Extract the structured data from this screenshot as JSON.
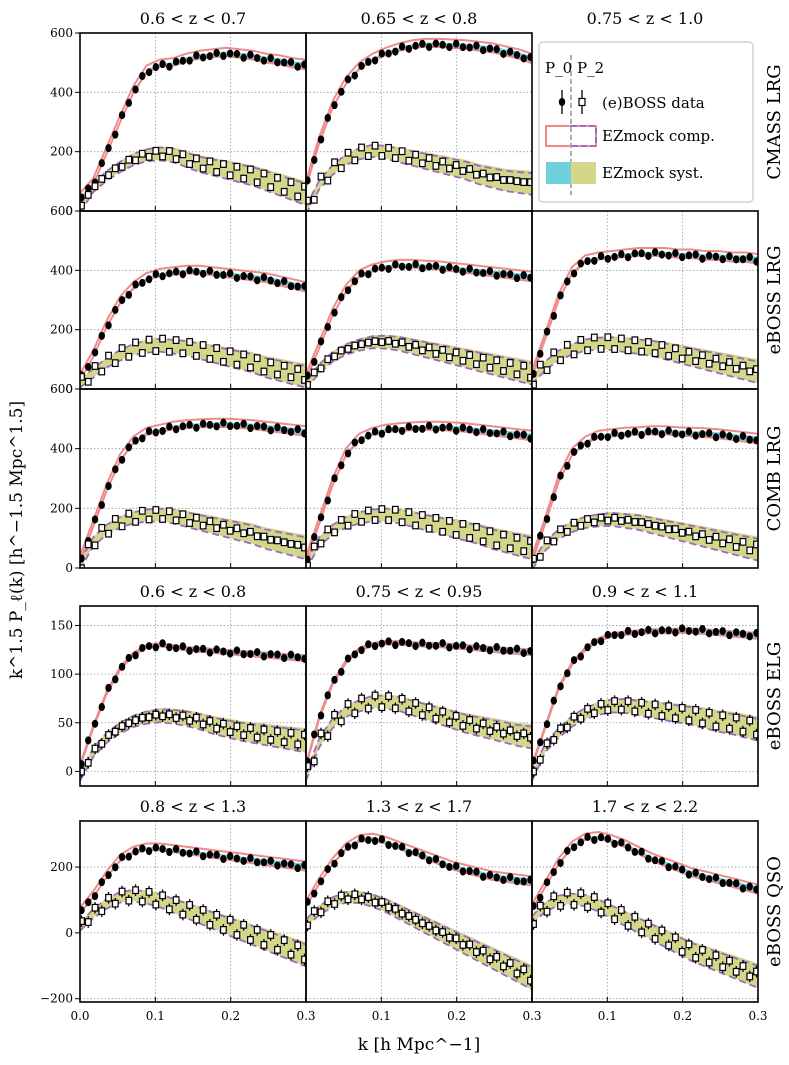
{
  "figure": {
    "y_axis_label": "k^1.5 P_ℓ(k) [h^−1.5 Mpc^1.5]",
    "x_axis_label": "k [h Mpc^−1]",
    "x_ticks": [
      "0.0",
      "0.1",
      "0.2",
      "0.3"
    ],
    "colors": {
      "mono_mock": "#f08a8a",
      "quad_mock": "#9b6bc4",
      "syst_mono": "#6fd0de",
      "syst_quad": "#d4d68a",
      "data": "#000000"
    }
  },
  "legend": {
    "p0": "P_0",
    "p2": "P_2",
    "data": "(e)BOSS data",
    "comp": "EZmock comp.",
    "syst": "EZmock syst."
  },
  "chart_data": [
    {
      "type": "line",
      "sample": "CMASS LRG",
      "row_label": "CMASS LRG",
      "ylim": [
        0,
        600
      ],
      "y_ticks": [
        0,
        200,
        400,
        600
      ],
      "panels": [
        {
          "title": "0.6 < z < 0.7",
          "P0": [
            40,
            90,
            195,
            300,
            400,
            470,
            490,
            495,
            510,
            520,
            525,
            530,
            525,
            520,
            510,
            505,
            495,
            490
          ],
          "P2": [
            10,
            80,
            120,
            150,
            175,
            190,
            195,
            190,
            175,
            160,
            150,
            140,
            130,
            120,
            105,
            90,
            75,
            60
          ]
        },
        {
          "title": "0.65 < z < 0.8",
          "P0": [
            80,
            230,
            350,
            430,
            480,
            510,
            530,
            545,
            555,
            560,
            560,
            558,
            555,
            550,
            545,
            535,
            525,
            510
          ],
          "P2": [
            5,
            90,
            140,
            175,
            195,
            205,
            200,
            190,
            180,
            170,
            160,
            150,
            140,
            125,
            115,
            105,
            100,
            95
          ]
        },
        {
          "title": "0.75 < z < 1.0",
          "legend_only": true
        }
      ]
    },
    {
      "type": "line",
      "sample": "eBOSS LRG",
      "row_label": "eBOSS LRG",
      "ylim": [
        0,
        600
      ],
      "y_ticks": [
        0,
        200,
        400,
        600
      ],
      "panels": [
        {
          "title": "",
          "P0": [
            30,
            110,
            210,
            290,
            340,
            370,
            385,
            390,
            395,
            395,
            390,
            385,
            380,
            375,
            370,
            360,
            350,
            340
          ],
          "P2": [
            20,
            55,
            90,
            115,
            135,
            145,
            150,
            145,
            140,
            130,
            120,
            110,
            100,
            90,
            75,
            65,
            55,
            45
          ]
        },
        {
          "title": "",
          "P0": [
            30,
            140,
            250,
            330,
            380,
            400,
            410,
            415,
            415,
            412,
            410,
            405,
            400,
            395,
            390,
            385,
            380,
            375
          ],
          "P2": [
            15,
            70,
            110,
            135,
            150,
            160,
            160,
            155,
            145,
            135,
            125,
            115,
            105,
            95,
            85,
            75,
            65,
            55
          ]
        },
        {
          "title": "",
          "P0": [
            40,
            170,
            300,
            390,
            430,
            440,
            445,
            450,
            455,
            455,
            455,
            450,
            450,
            445,
            445,
            440,
            440,
            435
          ],
          "P2": [
            30,
            80,
            115,
            135,
            150,
            155,
            155,
            150,
            145,
            140,
            130,
            120,
            110,
            100,
            90,
            80,
            70,
            60
          ]
        }
      ]
    },
    {
      "type": "line",
      "sample": "COMB LRG",
      "row_label": "COMB LRG",
      "ylim": [
        0,
        600
      ],
      "y_ticks": [
        0,
        200,
        400,
        600
      ],
      "panels": [
        {
          "title": "",
          "P0": [
            20,
            140,
            260,
            360,
            420,
            450,
            460,
            470,
            475,
            478,
            480,
            480,
            478,
            475,
            470,
            465,
            460,
            455
          ],
          "P2": [
            10,
            90,
            130,
            155,
            170,
            178,
            180,
            175,
            165,
            155,
            145,
            135,
            125,
            115,
            100,
            90,
            80,
            70
          ]
        },
        {
          "title": "",
          "P0": [
            20,
            150,
            280,
            380,
            430,
            450,
            460,
            465,
            468,
            470,
            470,
            468,
            465,
            460,
            455,
            450,
            445,
            440
          ],
          "P2": [
            10,
            90,
            130,
            155,
            170,
            178,
            180,
            175,
            165,
            155,
            145,
            135,
            125,
            115,
            100,
            90,
            80,
            70
          ]
        },
        {
          "title": "",
          "P0": [
            20,
            150,
            290,
            380,
            420,
            440,
            445,
            450,
            452,
            455,
            455,
            452,
            450,
            448,
            445,
            440,
            435,
            430
          ],
          "P2": [
            10,
            75,
            115,
            140,
            155,
            162,
            165,
            160,
            155,
            145,
            135,
            125,
            115,
            105,
            95,
            85,
            75,
            65
          ]
        }
      ]
    },
    {
      "type": "line",
      "sample": "eBOSS ELG",
      "row_label": "eBOSS ELG",
      "ylim": [
        -15,
        170
      ],
      "y_ticks": [
        0,
        50,
        100,
        150
      ],
      "panels": [
        {
          "title": "0.6 < z < 0.8",
          "P0": [
            5,
            45,
            80,
            105,
            120,
            128,
            130,
            128,
            126,
            125,
            124,
            123,
            122,
            121,
            120,
            119,
            118,
            117
          ],
          "P2": [
            -5,
            20,
            35,
            45,
            52,
            56,
            58,
            57,
            55,
            52,
            48,
            45,
            42,
            40,
            38,
            36,
            34,
            32
          ]
        },
        {
          "title": "0.75 < z < 0.95",
          "P0": [
            5,
            55,
            90,
            112,
            125,
            130,
            132,
            132,
            131,
            130,
            130,
            129,
            128,
            127,
            126,
            125,
            124,
            123
          ],
          "P2": [
            -5,
            30,
            50,
            62,
            68,
            72,
            72,
            70,
            66,
            62,
            58,
            54,
            50,
            47,
            44,
            41,
            38,
            36
          ]
        },
        {
          "title": "0.9 < z < 1.1",
          "P0": [
            5,
            45,
            85,
            110,
            125,
            135,
            140,
            142,
            143,
            144,
            144,
            145,
            145,
            144,
            143,
            142,
            141,
            140
          ],
          "P2": [
            -5,
            25,
            40,
            52,
            60,
            65,
            68,
            68,
            66,
            64,
            62,
            60,
            58,
            55,
            52,
            50,
            47,
            44
          ]
        }
      ]
    },
    {
      "type": "line",
      "sample": "eBOSS QSO",
      "row_label": "eBOSS QSO",
      "ylim": [
        -210,
        340
      ],
      "y_ticks": [
        -200,
        0,
        200
      ],
      "panels": [
        {
          "title": "0.8 < z < 1.3",
          "P0": [
            60,
            110,
            170,
            220,
            245,
            255,
            255,
            250,
            245,
            240,
            235,
            230,
            225,
            220,
            215,
            210,
            205,
            200
          ],
          "P2": [
            20,
            60,
            90,
            110,
            115,
            110,
            100,
            85,
            70,
            55,
            40,
            25,
            10,
            -5,
            -20,
            -35,
            -50,
            -65
          ]
        },
        {
          "title": "1.3 < z < 1.7",
          "P0": [
            80,
            150,
            210,
            255,
            280,
            285,
            275,
            260,
            245,
            230,
            215,
            200,
            190,
            180,
            170,
            165,
            160,
            155
          ],
          "P2": [
            30,
            70,
            95,
            110,
            110,
            100,
            85,
            65,
            45,
            25,
            5,
            -15,
            -35,
            -55,
            -75,
            -95,
            -115,
            -135
          ]
        },
        {
          "title": "1.7 < z < 2.2",
          "P0": [
            70,
            140,
            210,
            260,
            285,
            290,
            280,
            265,
            245,
            225,
            210,
            195,
            180,
            170,
            160,
            150,
            140,
            130
          ],
          "P2": [
            40,
            80,
            100,
            105,
            100,
            85,
            65,
            45,
            25,
            5,
            -15,
            -35,
            -55,
            -70,
            -85,
            -100,
            -115,
            -130
          ]
        }
      ]
    }
  ]
}
